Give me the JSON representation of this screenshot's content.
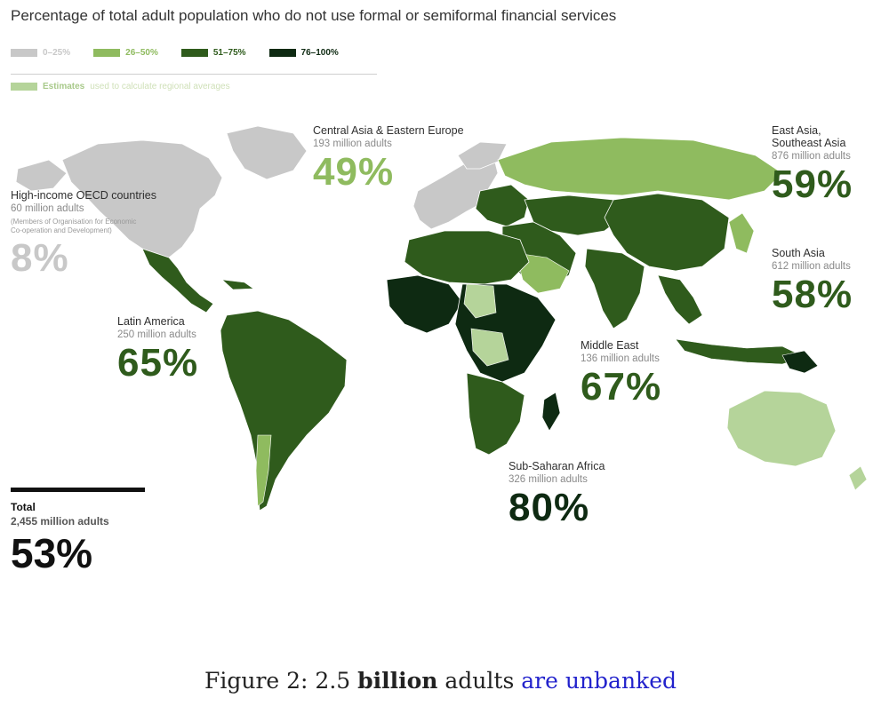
{
  "title": "Percentage of total adult population who do not use formal or semiformal financial services",
  "legend": {
    "items": [
      {
        "label": "0–25%",
        "color": "#c8c8c8"
      },
      {
        "label": "26–50%",
        "color": "#8fbb5f"
      },
      {
        "label": "51–75%",
        "color": "#2f5b1c"
      },
      {
        "label": "76–100%",
        "color": "#0e2a12"
      }
    ],
    "estimate_label": "Estimates",
    "estimate_text": "used to calculate regional averages",
    "estimate_color": "#b5d49a"
  },
  "regions": {
    "oecd": {
      "name": "High-income OECD countries",
      "adults": "60 million adults",
      "note1": "(Members of Organisation for Economic",
      "note2": "Co-operation and Development)",
      "percent": "8%",
      "color": "#c8c8c8"
    },
    "ceeu": {
      "name": "Central Asia & Eastern Europe",
      "adults": "193 million adults",
      "percent": "49%",
      "color": "#8fbb5f"
    },
    "eap": {
      "name1": "East Asia,",
      "name2": "Southeast Asia",
      "adults": "876 million adults",
      "percent": "59%",
      "color": "#2f5b1c"
    },
    "sa": {
      "name": "South Asia",
      "adults": "612 million adults",
      "percent": "58%",
      "color": "#2f5b1c"
    },
    "latam": {
      "name": "Latin America",
      "adults": "250 million adults",
      "percent": "65%",
      "color": "#2f5b1c"
    },
    "me": {
      "name": "Middle East",
      "adults": "136 million adults",
      "percent": "67%",
      "color": "#2f5b1c"
    },
    "ssa": {
      "name": "Sub-Saharan Africa",
      "adults": "326 million adults",
      "percent": "80%",
      "color": "#0e2a12"
    }
  },
  "total": {
    "label": "Total",
    "adults": "2,455 million adults",
    "percent": "53%"
  },
  "caption": {
    "prefix": "Figure 2: 2.5 ",
    "bold": "billion",
    "middle": " adults ",
    "link": "are unbanked"
  }
}
